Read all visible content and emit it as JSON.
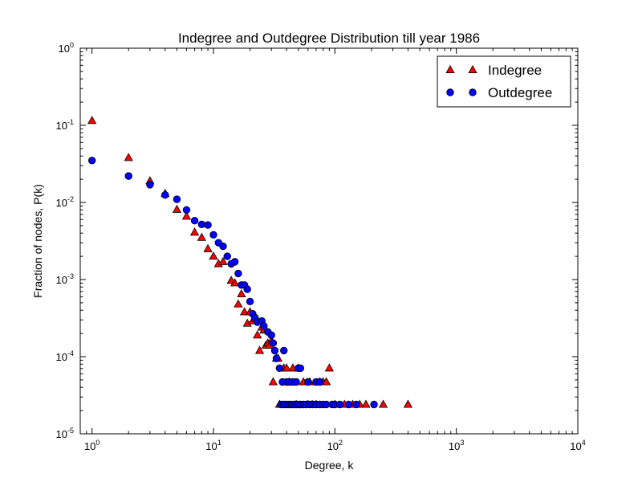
{
  "chart_data": {
    "type": "scatter",
    "title": "Indegree and Outdegree Distribution till year 1986",
    "xlabel": "Degree, k",
    "ylabel": "Fraction of nodes, P(k)",
    "xscale": "log",
    "yscale": "log",
    "xlim": [
      0.8,
      10000
    ],
    "ylim": [
      1e-05,
      1
    ],
    "x_ticks": [
      {
        "value": 1,
        "base": "10",
        "exp": "0"
      },
      {
        "value": 10,
        "base": "10",
        "exp": "1"
      },
      {
        "value": 100,
        "base": "10",
        "exp": "2"
      },
      {
        "value": 1000,
        "base": "10",
        "exp": "3"
      },
      {
        "value": 10000,
        "base": "10",
        "exp": "4"
      }
    ],
    "y_ticks": [
      {
        "value": 1e-05,
        "base": "10",
        "exp": "-5"
      },
      {
        "value": 0.0001,
        "base": "10",
        "exp": "-4"
      },
      {
        "value": 0.001,
        "base": "10",
        "exp": "-3"
      },
      {
        "value": 0.01,
        "base": "10",
        "exp": "-2"
      },
      {
        "value": 0.1,
        "base": "10",
        "exp": "-1"
      },
      {
        "value": 1,
        "base": "10",
        "exp": "0"
      }
    ],
    "grid": false,
    "legend_position": "top-right",
    "series": [
      {
        "name": "Indegree",
        "marker": "triangle",
        "color": "#ff0000",
        "points": [
          [
            1,
            0.115
          ],
          [
            2,
            0.038
          ],
          [
            3,
            0.019
          ],
          [
            4,
            0.013
          ],
          [
            5,
            0.0081
          ],
          [
            6,
            0.0066
          ],
          [
            7,
            0.0041
          ],
          [
            8,
            0.0035
          ],
          [
            9,
            0.0025
          ],
          [
            10,
            0.002
          ],
          [
            11,
            0.0016
          ],
          [
            12,
            0.0017
          ],
          [
            14,
            0.00097
          ],
          [
            15,
            0.0009
          ],
          [
            16,
            0.00048
          ],
          [
            17,
            0.00065
          ],
          [
            18,
            0.00038
          ],
          [
            19,
            0.00027
          ],
          [
            20,
            0.00038
          ],
          [
            21,
            0.00029
          ],
          [
            22,
            0.00031
          ],
          [
            23,
            0.00019
          ],
          [
            24,
            0.00012
          ],
          [
            25,
            0.00024
          ],
          [
            26,
            0.00022
          ],
          [
            27,
            0.00014
          ],
          [
            28,
            0.00015
          ],
          [
            29,
            0.00014
          ],
          [
            30,
            0.00016
          ],
          [
            31,
            4.7e-05
          ],
          [
            33,
            9.5e-05
          ],
          [
            34,
            9.5e-05
          ],
          [
            35,
            2.4e-05
          ],
          [
            38,
            7.1e-05
          ],
          [
            40,
            7.1e-05
          ],
          [
            42,
            4.7e-05
          ],
          [
            45,
            7.1e-05
          ],
          [
            48,
            2.4e-05
          ],
          [
            50,
            7.1e-05
          ],
          [
            55,
            4.7e-05
          ],
          [
            60,
            2.4e-05
          ],
          [
            62,
            4.7e-05
          ],
          [
            65,
            2.4e-05
          ],
          [
            70,
            2.4e-05
          ],
          [
            75,
            4.7e-05
          ],
          [
            80,
            4.7e-05
          ],
          [
            85,
            4.7e-05
          ],
          [
            90,
            7.1e-05
          ],
          [
            100,
            2.4e-05
          ],
          [
            120,
            2.4e-05
          ],
          [
            140,
            2.4e-05
          ],
          [
            160,
            2.4e-05
          ],
          [
            180,
            2.4e-05
          ],
          [
            250,
            2.4e-05
          ],
          [
            400,
            2.4e-05
          ]
        ]
      },
      {
        "name": "Outdegree",
        "marker": "circle",
        "color": "#0000ff",
        "points": [
          [
            1,
            0.035
          ],
          [
            2,
            0.022
          ],
          [
            3,
            0.017
          ],
          [
            4,
            0.0125
          ],
          [
            5,
            0.011
          ],
          [
            6,
            0.008
          ],
          [
            7,
            0.0058
          ],
          [
            8,
            0.0052
          ],
          [
            9,
            0.0051
          ],
          [
            10,
            0.0038
          ],
          [
            11,
            0.003
          ],
          [
            12,
            0.0027
          ],
          [
            13,
            0.002
          ],
          [
            14,
            0.0016
          ],
          [
            15,
            0.0017
          ],
          [
            16,
            0.0012
          ],
          [
            17,
            0.00085
          ],
          [
            18,
            0.00085
          ],
          [
            19,
            0.00075
          ],
          [
            20,
            0.00052
          ],
          [
            21,
            0.00036
          ],
          [
            22,
            0.00032
          ],
          [
            23,
            0.00028
          ],
          [
            25,
            0.00029
          ],
          [
            26,
            0.00025
          ],
          [
            28,
            0.00021
          ],
          [
            30,
            0.00019
          ],
          [
            31,
            0.00015
          ],
          [
            32,
            0.00012
          ],
          [
            33,
            9.5e-05
          ],
          [
            35,
            7.1e-05
          ],
          [
            37,
            4.7e-05
          ],
          [
            38,
            0.00012
          ],
          [
            40,
            4.7e-05
          ],
          [
            42,
            4.7e-05
          ],
          [
            45,
            4.7e-05
          ],
          [
            48,
            4.7e-05
          ],
          [
            50,
            7.1e-05
          ],
          [
            52,
            7.1e-05
          ],
          [
            60,
            4.7e-05
          ],
          [
            70,
            4.7e-05
          ],
          [
            75,
            4.7e-05
          ],
          [
            36,
            2.4e-05
          ],
          [
            38,
            2.4e-05
          ],
          [
            40,
            2.4e-05
          ],
          [
            42,
            2.4e-05
          ],
          [
            44,
            2.4e-05
          ],
          [
            46,
            2.4e-05
          ],
          [
            48,
            2.4e-05
          ],
          [
            50,
            2.4e-05
          ],
          [
            52,
            2.4e-05
          ],
          [
            55,
            2.4e-05
          ],
          [
            58,
            2.4e-05
          ],
          [
            62,
            2.4e-05
          ],
          [
            66,
            2.4e-05
          ],
          [
            70,
            2.4e-05
          ],
          [
            75,
            2.4e-05
          ],
          [
            80,
            2.4e-05
          ],
          [
            85,
            2.4e-05
          ],
          [
            95,
            2.4e-05
          ],
          [
            100,
            2.4e-05
          ],
          [
            110,
            2.4e-05
          ],
          [
            130,
            2.4e-05
          ],
          [
            150,
            2.4e-05
          ],
          [
            210,
            2.4e-05
          ]
        ]
      }
    ]
  }
}
